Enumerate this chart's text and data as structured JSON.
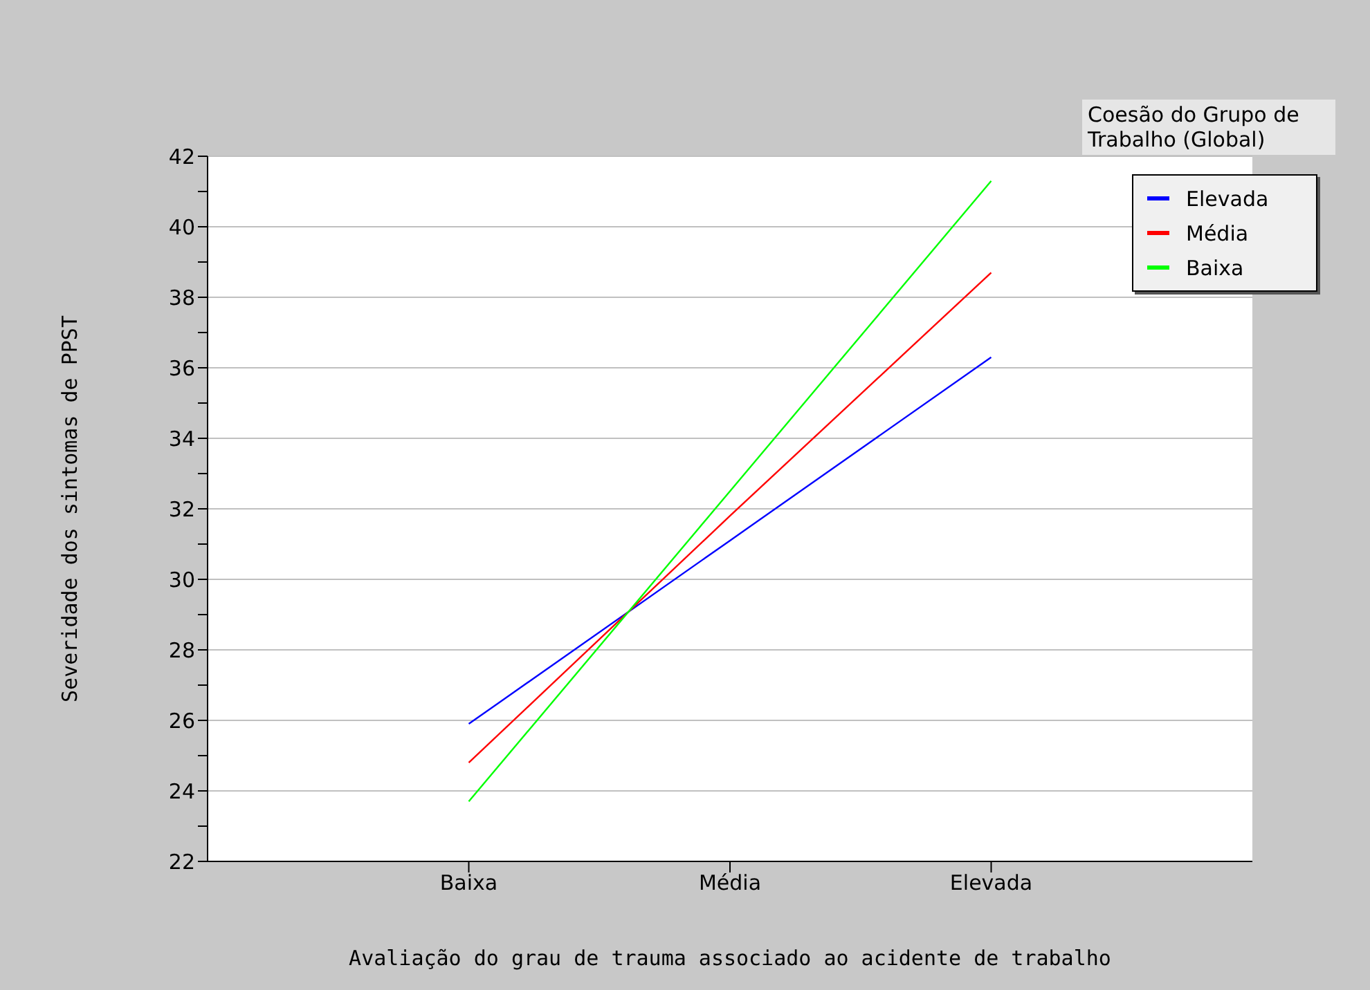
{
  "chart_data": {
    "type": "line",
    "xlabel": "Avaliação do grau de trauma associado ao acidente de trabalho",
    "ylabel": "Severidade dos sintomas de PPST",
    "legend_title": "Coesão do Grupo de Trabalho (Global)",
    "categories": [
      "Baixa",
      "Média",
      "Elevada"
    ],
    "series": [
      {
        "name": "Elevada",
        "color": "#0000ff",
        "values": [
          25.9,
          31.1,
          36.3
        ]
      },
      {
        "name": "Média",
        "color": "#ff0000",
        "values": [
          24.8,
          31.8,
          38.7
        ]
      },
      {
        "name": "Baixa",
        "color": "#00ff00",
        "values": [
          23.7,
          32.5,
          41.3
        ]
      }
    ],
    "ylim": [
      22,
      42
    ],
    "yticks": [
      22,
      {
        "value": 23,
        "label": null
      },
      24,
      {
        "value": 25,
        "label": null
      },
      26,
      {
        "value": 27,
        "label": null
      },
      28,
      {
        "value": 29,
        "label": null
      },
      30,
      {
        "value": 31,
        "label": null
      },
      32,
      {
        "value": 33,
        "label": null
      },
      34,
      {
        "value": 35,
        "label": null
      },
      36,
      {
        "value": 37,
        "label": null
      },
      38,
      {
        "value": 39,
        "label": null
      },
      40,
      {
        "value": 41,
        "label": null
      },
      42
    ],
    "grid": "y",
    "legend": "top right",
    "marker": "none",
    "line_style": "solid"
  }
}
